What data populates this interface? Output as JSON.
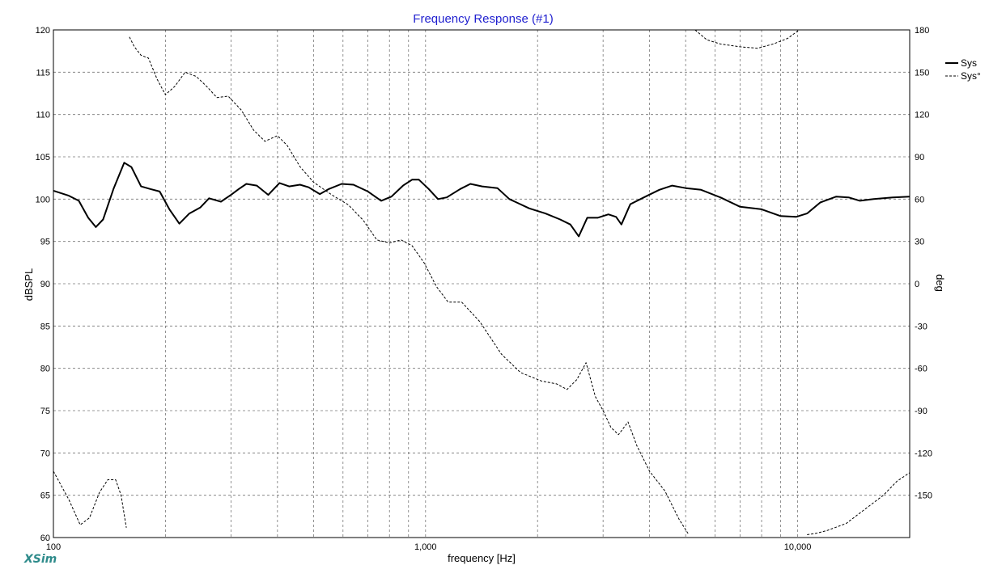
{
  "app": {
    "brand": "XSim",
    "brand_color": "#2e8b8b"
  },
  "chart_data": {
    "type": "line",
    "title": "Frequency Response (#1)",
    "title_color": "#1f1fcf",
    "xlabel": "frequency [Hz]",
    "ylabel": "dBSPL",
    "y2label": "deg",
    "x_scale": "log",
    "xlim": [
      100,
      20000
    ],
    "ylim": [
      60,
      120
    ],
    "y2lim": [
      -180,
      180
    ],
    "grid": true,
    "legend": "top-right",
    "x_tick_labels": [
      {
        "value": 100,
        "label": "100"
      },
      {
        "value": 1000,
        "label": "1,000"
      },
      {
        "value": 10000,
        "label": "10,000"
      }
    ],
    "y_ticks": [
      60,
      65,
      70,
      75,
      80,
      85,
      90,
      95,
      100,
      105,
      110,
      115,
      120
    ],
    "y2_ticks": [
      -150,
      -120,
      -90,
      -60,
      -30,
      0,
      30,
      60,
      90,
      120,
      150,
      180
    ],
    "series": [
      {
        "name": "Sys",
        "axis": "left",
        "style": "solid",
        "color": "#000000",
        "points": [
          [
            100,
            101.0
          ],
          [
            110,
            100.4
          ],
          [
            117,
            99.8
          ],
          [
            124,
            97.8
          ],
          [
            130,
            96.7
          ],
          [
            136,
            97.6
          ],
          [
            145,
            101.2
          ],
          [
            155,
            104.3
          ],
          [
            162,
            103.8
          ],
          [
            172,
            101.5
          ],
          [
            182,
            101.2
          ],
          [
            193,
            100.9
          ],
          [
            205,
            98.8
          ],
          [
            218,
            97.1
          ],
          [
            232,
            98.3
          ],
          [
            248,
            99.0
          ],
          [
            262,
            100.1
          ],
          [
            282,
            99.7
          ],
          [
            300,
            100.5
          ],
          [
            315,
            101.2
          ],
          [
            330,
            101.8
          ],
          [
            352,
            101.6
          ],
          [
            378,
            100.5
          ],
          [
            405,
            101.9
          ],
          [
            430,
            101.5
          ],
          [
            460,
            101.7
          ],
          [
            485,
            101.4
          ],
          [
            520,
            100.6
          ],
          [
            550,
            101.2
          ],
          [
            595,
            101.8
          ],
          [
            640,
            101.7
          ],
          [
            700,
            100.9
          ],
          [
            760,
            99.8
          ],
          [
            810,
            100.3
          ],
          [
            870,
            101.6
          ],
          [
            920,
            102.3
          ],
          [
            960,
            102.3
          ],
          [
            1020,
            101.2
          ],
          [
            1080,
            100.0
          ],
          [
            1140,
            100.2
          ],
          [
            1240,
            101.2
          ],
          [
            1320,
            101.8
          ],
          [
            1420,
            101.5
          ],
          [
            1560,
            101.3
          ],
          [
            1680,
            100.0
          ],
          [
            1900,
            98.9
          ],
          [
            2100,
            98.3
          ],
          [
            2300,
            97.6
          ],
          [
            2450,
            97.0
          ],
          [
            2580,
            95.6
          ],
          [
            2720,
            97.8
          ],
          [
            2900,
            97.8
          ],
          [
            3100,
            98.2
          ],
          [
            3250,
            97.9
          ],
          [
            3360,
            97.0
          ],
          [
            3550,
            99.4
          ],
          [
            3900,
            100.3
          ],
          [
            4250,
            101.1
          ],
          [
            4600,
            101.6
          ],
          [
            5000,
            101.3
          ],
          [
            5500,
            101.1
          ],
          [
            6200,
            100.2
          ],
          [
            7000,
            99.1
          ],
          [
            8000,
            98.8
          ],
          [
            9000,
            98.0
          ],
          [
            9900,
            97.9
          ],
          [
            10600,
            98.3
          ],
          [
            11500,
            99.6
          ],
          [
            12700,
            100.3
          ],
          [
            13700,
            100.2
          ],
          [
            14700,
            99.8
          ],
          [
            16000,
            100.0
          ],
          [
            18000,
            100.2
          ],
          [
            20000,
            100.3
          ]
        ]
      },
      {
        "name": "Sys°",
        "axis": "right",
        "style": "dashed",
        "color": "#000000",
        "points": [
          [
            100,
            -133
          ],
          [
            110,
            -153
          ],
          [
            118,
            -171
          ],
          [
            125,
            -166
          ],
          [
            133,
            -148
          ],
          [
            140,
            -139
          ],
          [
            147,
            -139
          ],
          [
            152,
            -150
          ],
          [
            157,
            -173
          ],
          null,
          [
            160,
            175
          ],
          [
            165,
            168
          ],
          [
            172,
            162
          ],
          [
            180,
            160
          ],
          [
            190,
            145
          ],
          [
            200,
            134
          ],
          [
            212,
            140
          ],
          [
            226,
            150
          ],
          [
            242,
            147
          ],
          [
            258,
            140
          ],
          [
            275,
            132
          ],
          [
            295,
            133
          ],
          [
            320,
            123
          ],
          [
            345,
            109
          ],
          [
            370,
            101
          ],
          [
            400,
            105
          ],
          [
            425,
            98
          ],
          [
            460,
            83
          ],
          [
            500,
            72
          ],
          [
            560,
            63
          ],
          [
            620,
            56
          ],
          [
            680,
            45
          ],
          [
            740,
            31
          ],
          [
            800,
            29
          ],
          [
            860,
            31
          ],
          [
            920,
            27
          ],
          [
            990,
            15
          ],
          [
            1070,
            -2
          ],
          [
            1150,
            -13
          ],
          [
            1250,
            -13
          ],
          [
            1400,
            -27
          ],
          [
            1600,
            -50
          ],
          [
            1800,
            -63
          ],
          [
            2050,
            -69
          ],
          [
            2250,
            -71
          ],
          [
            2400,
            -75
          ],
          [
            2550,
            -68
          ],
          [
            2700,
            -56
          ],
          [
            2860,
            -80
          ],
          [
            3000,
            -90
          ],
          [
            3150,
            -102
          ],
          [
            3300,
            -107
          ],
          [
            3500,
            -98
          ],
          [
            3700,
            -115
          ],
          [
            4000,
            -133
          ],
          [
            4400,
            -147
          ],
          [
            4800,
            -167
          ],
          [
            5100,
            -178
          ],
          null,
          [
            5300,
            180
          ],
          [
            5700,
            173
          ],
          [
            6200,
            170
          ],
          [
            7000,
            168
          ],
          [
            7800,
            167
          ],
          [
            8600,
            170
          ],
          [
            9400,
            174
          ],
          [
            10100,
            180
          ],
          null,
          [
            10600,
            -178
          ],
          [
            11200,
            -177
          ],
          [
            12000,
            -175
          ],
          [
            13500,
            -170
          ],
          [
            15500,
            -158
          ],
          [
            17000,
            -150
          ],
          [
            18500,
            -140
          ],
          [
            20000,
            -134
          ]
        ]
      }
    ]
  }
}
